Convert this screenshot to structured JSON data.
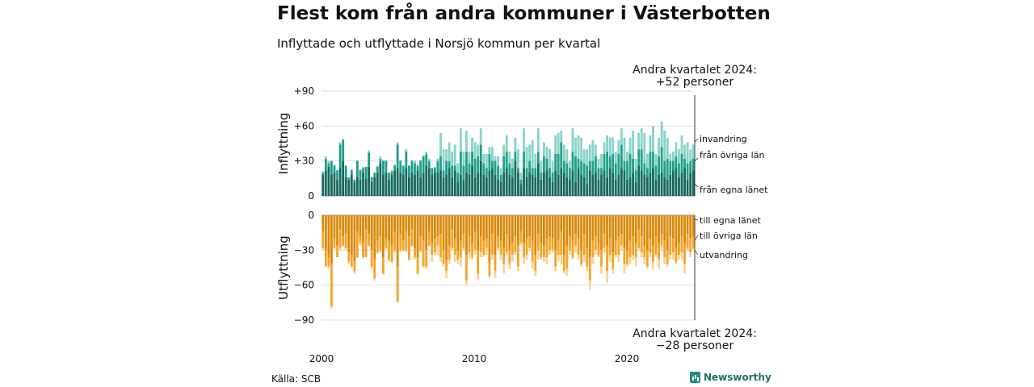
{
  "header": {
    "title": "Flest kom från andra kommuner i Västerbotten",
    "subtitle": "Inflyttade och utflyttade i Norsjö kommun per kvartal"
  },
  "footer": {
    "source": "Källa: SCB",
    "brand": "Newsworthy"
  },
  "colors": {
    "in_own": "#14665b",
    "in_other": "#1f9e8a",
    "in_abroad": "#86d3c8",
    "out_own": "#d98807",
    "out_other": "#f5a327",
    "out_abroad": "#f6d49a"
  },
  "chart_data": {
    "type": "bar",
    "stacked": true,
    "x_start": "2000 Q1",
    "x_ticks": [
      "2000",
      "2010",
      "2020"
    ],
    "annotation_top": [
      "Andra kvartalet 2024:",
      "+52 personer"
    ],
    "annotation_bottom": [
      "Andra kvartalet 2024:",
      "−28 personer"
    ],
    "panels": [
      {
        "name": "inflyttning",
        "ylabel": "Inflyttning",
        "ylim": [
          0,
          90
        ],
        "yticks": [
          "+90",
          "+60",
          "+30",
          "0"
        ],
        "series": [
          {
            "name": "från egna länet",
            "values": [
              18,
              22,
              25,
              18,
              20,
              14,
              24,
              30,
              16,
              14,
              18,
              12,
              16,
              14,
              20,
              15,
              25,
              12,
              16,
              20,
              28,
              18,
              20,
              14,
              18,
              22,
              24,
              20,
              18,
              24,
              16,
              20,
              18,
              22,
              16,
              20,
              26,
              24,
              18,
              20,
              20,
              22,
              16,
              18,
              24,
              16,
              22,
              12,
              18,
              14,
              20,
              18,
              26,
              16,
              20,
              30,
              18,
              16,
              22,
              24,
              18,
              14,
              12,
              20,
              24,
              18,
              16,
              30,
              20,
              10,
              24,
              16,
              20,
              18,
              16,
              28,
              14,
              20,
              22,
              16,
              12,
              22,
              18,
              24,
              20,
              16,
              14,
              22,
              12,
              24,
              18,
              16,
              10,
              22,
              18,
              20,
              14,
              18,
              22,
              16,
              24,
              20,
              14,
              18,
              24,
              22,
              14,
              16,
              20,
              12,
              26,
              22,
              18,
              16,
              20,
              24,
              14,
              18,
              20,
              16,
              14,
              18,
              22,
              24,
              16,
              20,
              24,
              14,
              20,
              22
            ]
          },
          {
            "name": "från övriga län",
            "values": [
              2,
              10,
              3,
              12,
              6,
              8,
              20,
              18,
              10,
              2,
              4,
              2,
              14,
              8,
              4,
              10,
              12,
              4,
              4,
              5,
              4,
              12,
              10,
              6,
              3,
              4,
              20,
              10,
              8,
              14,
              10,
              10,
              10,
              4,
              14,
              14,
              10,
              6,
              6,
              4,
              10,
              12,
              6,
              12,
              6,
              10,
              4,
              8,
              20,
              12,
              18,
              10,
              12,
              16,
              14,
              14,
              10,
              8,
              14,
              6,
              12,
              12,
              6,
              14,
              14,
              10,
              8,
              8,
              4,
              4,
              14,
              8,
              10,
              6,
              8,
              10,
              6,
              14,
              10,
              8,
              8,
              14,
              18,
              22,
              10,
              12,
              10,
              16,
              22,
              8,
              12,
              12,
              16,
              8,
              12,
              14,
              10,
              6,
              14,
              22,
              10,
              16,
              14,
              18,
              20,
              8,
              16,
              20,
              12,
              10,
              14,
              18,
              10,
              8,
              18,
              14,
              12,
              16,
              22,
              14,
              18,
              12,
              8,
              10,
              12,
              16,
              8,
              14,
              10,
              10
            ]
          },
          {
            "name": "invandring",
            "values": [
              1,
              2,
              2,
              0,
              1,
              0,
              2,
              1,
              0,
              0,
              1,
              0,
              1,
              1,
              1,
              0,
              2,
              0,
              0,
              1,
              2,
              1,
              1,
              0,
              1,
              1,
              2,
              1,
              0,
              2,
              0,
              1,
              2,
              1,
              1,
              1,
              2,
              2,
              0,
              1,
              2,
              20,
              18,
              10,
              16,
              12,
              18,
              8,
              20,
              12,
              18,
              10,
              12,
              14,
              10,
              14,
              8,
              12,
              6,
              12,
              4,
              8,
              6,
              10,
              14,
              10,
              8,
              12,
              16,
              6,
              20,
              18,
              14,
              24,
              12,
              20,
              10,
              12,
              10,
              16,
              10,
              16,
              18,
              10,
              14,
              12,
              6,
              20,
              16,
              20,
              20,
              12,
              14,
              14,
              18,
              10,
              8,
              12,
              10,
              14,
              16,
              14,
              10,
              12,
              14,
              20,
              8,
              14,
              24,
              10,
              14,
              18,
              26,
              12,
              14,
              22,
              10,
              16,
              22,
              26,
              18,
              6,
              8,
              12,
              12,
              16,
              12,
              18,
              10,
              12
            ]
          }
        ]
      },
      {
        "name": "utflyttning",
        "ylabel": "Utflyttning",
        "ylim": [
          -90,
          0
        ],
        "yticks": [
          "0",
          "−30",
          "−60",
          "−90"
        ],
        "series": [
          {
            "name": "till egna länet",
            "values": [
              -14,
              -30,
              -36,
              -42,
              -20,
              -26,
              -12,
              -18,
              -16,
              -32,
              -34,
              -40,
              -14,
              -18,
              -24,
              -12,
              -16,
              -30,
              -38,
              -22,
              -18,
              -36,
              -20,
              -22,
              -26,
              -14,
              -44,
              -16,
              -22,
              -14,
              -18,
              -12,
              -28,
              -36,
              -18,
              -22,
              -30,
              -14,
              -24,
              -20,
              -18,
              -16,
              -30,
              -38,
              -26,
              -12,
              -20,
              -30,
              -22,
              -16,
              -34,
              -18,
              -24,
              -14,
              -30,
              -18,
              -22,
              -20,
              -40,
              -16,
              -34,
              -18,
              -22,
              -28,
              -16,
              -30,
              -24,
              -18,
              -26,
              -14,
              -24,
              -20,
              -18,
              -22,
              -34,
              -16,
              -24,
              -26,
              -20,
              -18,
              -20,
              -30,
              -22,
              -14,
              -34,
              -26,
              -18,
              -22,
              -16,
              -20,
              -30,
              -16,
              -28,
              -36,
              -22,
              -18,
              -24,
              -30,
              -16,
              -26,
              -20,
              -32,
              -22,
              -18,
              -16,
              -28,
              -30,
              -22,
              -18,
              -24,
              -12,
              -18,
              -26,
              -30,
              -20,
              -26,
              -18,
              -24,
              -16,
              -22,
              -30,
              -18,
              -20,
              -28,
              -24,
              -18,
              -24,
              -16,
              -20,
              -18
            ]
          },
          {
            "name": "till övriga län",
            "values": [
              -14,
              -14,
              -8,
              -36,
              -8,
              -10,
              -16,
              -8,
              -12,
              -8,
              -10,
              -8,
              -22,
              -6,
              -12,
              -24,
              -10,
              -14,
              -16,
              -10,
              -12,
              -14,
              -8,
              -16,
              -14,
              -16,
              -30,
              -14,
              -8,
              -16,
              -20,
              -14,
              -8,
              -14,
              -12,
              -22,
              -14,
              -12,
              -10,
              -12,
              -8,
              -20,
              -12,
              -10,
              -12,
              -16,
              -14,
              -8,
              -14,
              -12,
              -22,
              -14,
              -12,
              -16,
              -20,
              -14,
              -12,
              -8,
              -12,
              -18,
              -14,
              -10,
              -12,
              -14,
              -16,
              -12,
              -10,
              -14,
              -18,
              -10,
              -12,
              -14,
              -10,
              -18,
              -14,
              -14,
              -12,
              -10,
              -16,
              -12,
              -10,
              -14,
              -12,
              -20,
              -14,
              -20,
              -12,
              -14,
              -10,
              -14,
              -12,
              -18,
              -16,
              -20,
              -14,
              -12,
              -10,
              -14,
              -12,
              -22,
              -14,
              -14,
              -12,
              -16,
              -10,
              -14,
              -12,
              -14,
              -16,
              -12,
              -16,
              -14,
              -10,
              -14,
              -12,
              -14,
              -16,
              -14,
              -10,
              -14,
              -12,
              -16,
              -12,
              -12,
              -10,
              -14,
              -18,
              -12,
              -12,
              -10
            ]
          },
          {
            "name": "utvandring",
            "values": [
              -2,
              0,
              -2,
              -2,
              -1,
              0,
              -2,
              -1,
              -2,
              -2,
              -1,
              -2,
              -1,
              -2,
              -1,
              0,
              -1,
              -2,
              -2,
              -1,
              -2,
              -1,
              -1,
              -2,
              -1,
              -2,
              -1,
              -2,
              -1,
              -2,
              -1,
              -1,
              -2,
              -1,
              -2,
              -1,
              -2,
              -1,
              -6,
              -2,
              -8,
              -4,
              -2,
              -6,
              -4,
              -2,
              -6,
              -4,
              -8,
              -2,
              -4,
              -6,
              -2,
              -4,
              -6,
              -4,
              -2,
              -6,
              -2,
              -4,
              -6,
              -2,
              -4,
              -8,
              -2,
              -4,
              -6,
              -2,
              -4,
              -2,
              -6,
              -4,
              -2,
              -6,
              -4,
              -8,
              -2,
              -4,
              -6,
              -4,
              -2,
              -4,
              -6,
              -8,
              -2,
              -6,
              -4,
              -2,
              -6,
              -4,
              -2,
              -6,
              -4,
              -8,
              -6,
              -4,
              -2,
              -6,
              -4,
              -10,
              -6,
              -4,
              -2,
              -6,
              -4,
              -8,
              -2,
              -6,
              -4,
              -8,
              -2,
              -4,
              -6,
              -2,
              -4,
              -6,
              -2,
              -8,
              -4,
              -6,
              -2,
              -4,
              -6,
              -2,
              -4,
              -6,
              -8,
              -2,
              -4,
              -2
            ]
          }
        ]
      }
    ]
  }
}
